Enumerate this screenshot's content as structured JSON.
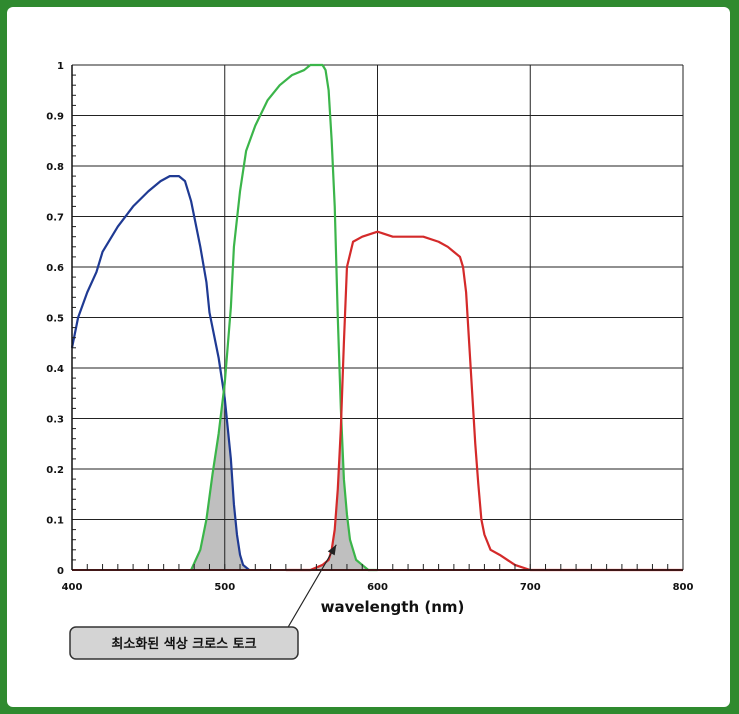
{
  "chart_data": {
    "type": "line",
    "xlabel": "wavelength (nm)",
    "ylabel": "",
    "xlim": [
      400,
      800
    ],
    "ylim": [
      0,
      1
    ],
    "x_ticks": [
      400,
      500,
      600,
      700,
      800
    ],
    "y_ticks": [
      0,
      0.1,
      0.2,
      0.3,
      0.4,
      0.5,
      0.6,
      0.7,
      0.8,
      0.9,
      1
    ],
    "y_tick_labels": [
      "0",
      "0.1",
      "0.2",
      "0.3",
      "0.4",
      "0.5",
      "0.6",
      "0.7",
      "0.8",
      "0.9",
      "1"
    ],
    "grid": true,
    "annotation": "최소화된 색상 크로스 토크",
    "colors": {
      "blue": "#1f3a93",
      "green": "#3bb54a",
      "red": "#d42a2a",
      "overlap_fill": "#bfbfbf"
    },
    "series": [
      {
        "color": "blue",
        "x": [
          400,
          404,
          410,
          416,
          420,
          430,
          440,
          450,
          458,
          464,
          470,
          474,
          478,
          480,
          484,
          488,
          490,
          494,
          496,
          498,
          500,
          502,
          504,
          506,
          508,
          510,
          512,
          516
        ],
        "y": [
          0.44,
          0.5,
          0.55,
          0.59,
          0.63,
          0.68,
          0.72,
          0.75,
          0.77,
          0.78,
          0.78,
          0.77,
          0.73,
          0.7,
          0.64,
          0.57,
          0.51,
          0.45,
          0.42,
          0.38,
          0.34,
          0.28,
          0.22,
          0.13,
          0.07,
          0.03,
          0.01,
          0.0
        ]
      },
      {
        "color": "green",
        "x": [
          478,
          484,
          488,
          492,
          496,
          498,
          500,
          504,
          506,
          510,
          514,
          520,
          528,
          536,
          544,
          552,
          556,
          560,
          564,
          566,
          568,
          570,
          572,
          574,
          576,
          578,
          580,
          582,
          586,
          590,
          594,
          600
        ],
        "y": [
          0.0,
          0.04,
          0.1,
          0.19,
          0.27,
          0.32,
          0.37,
          0.52,
          0.64,
          0.75,
          0.83,
          0.88,
          0.93,
          0.96,
          0.98,
          0.99,
          1.0,
          1.0,
          1.0,
          0.99,
          0.95,
          0.85,
          0.72,
          0.5,
          0.32,
          0.18,
          0.11,
          0.06,
          0.02,
          0.01,
          0.0,
          0.0
        ]
      },
      {
        "color": "red",
        "x": [
          540,
          556,
          564,
          568,
          570,
          572,
          574,
          576,
          578,
          580,
          584,
          590,
          600,
          610,
          620,
          630,
          640,
          646,
          650,
          654,
          656,
          658,
          660,
          662,
          664,
          666,
          668,
          670,
          674,
          680,
          690,
          700,
          706,
          710,
          800
        ],
        "y": [
          0.0,
          0.0,
          0.01,
          0.02,
          0.04,
          0.08,
          0.16,
          0.28,
          0.45,
          0.6,
          0.65,
          0.66,
          0.67,
          0.66,
          0.66,
          0.66,
          0.65,
          0.64,
          0.63,
          0.62,
          0.6,
          0.55,
          0.45,
          0.35,
          0.25,
          0.17,
          0.1,
          0.07,
          0.04,
          0.03,
          0.01,
          0.0,
          0.0,
          0.0,
          0.0
        ]
      }
    ]
  }
}
